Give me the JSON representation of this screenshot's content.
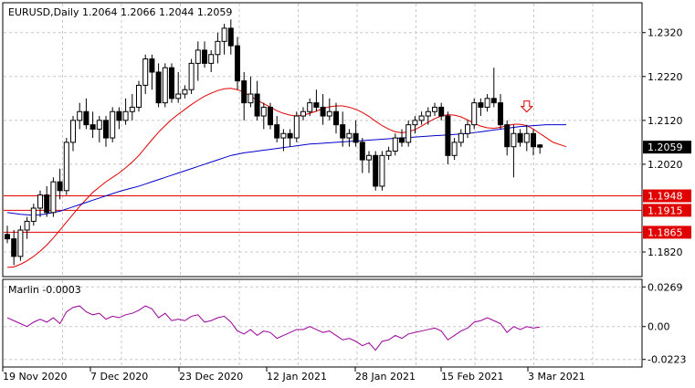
{
  "chart_data": [
    {
      "type": "candlestick",
      "title": "EURUSD,Daily  1.2064 1.2066 1.2044 1.2059",
      "ylim": [
        1.1766,
        1.2386
      ],
      "yticks": [
        "1.2320",
        "1.2220",
        "1.2120",
        "1.2020",
        "1.1820"
      ],
      "current_price": "1.2059",
      "levels": [
        {
          "label": "1.1948",
          "value": 1.1948
        },
        {
          "label": "1.1915",
          "value": 1.1915
        },
        {
          "label": "1.1865",
          "value": 1.1865
        }
      ],
      "xticks": [
        "19 Nov 2020",
        "7 Dec 2020",
        "23 Dec 2020",
        "12 Jan 2021",
        "28 Jan 2021",
        "15 Feb 2021",
        "3 Mar 2021"
      ],
      "signal_arrow": {
        "index": 79,
        "price": 1.2135,
        "direction": "down"
      },
      "candles": [
        [
          1.186,
          1.188,
          1.184,
          1.185
        ],
        [
          1.185,
          1.187,
          1.179,
          1.181
        ],
        [
          1.181,
          1.188,
          1.18,
          1.187
        ],
        [
          1.187,
          1.19,
          1.185,
          1.189
        ],
        [
          1.189,
          1.193,
          1.188,
          1.192
        ],
        [
          1.192,
          1.196,
          1.19,
          1.195
        ],
        [
          1.195,
          1.197,
          1.19,
          1.191
        ],
        [
          1.191,
          1.199,
          1.19,
          1.198
        ],
        [
          1.198,
          1.201,
          1.194,
          1.196
        ],
        [
          1.196,
          1.208,
          1.195,
          1.207
        ],
        [
          1.207,
          1.213,
          1.205,
          1.212
        ],
        [
          1.212,
          1.216,
          1.21,
          1.214
        ],
        [
          1.214,
          1.217,
          1.21,
          1.211
        ],
        [
          1.211,
          1.214,
          1.208,
          1.21
        ],
        [
          1.21,
          1.213,
          1.207,
          1.212
        ],
        [
          1.212,
          1.213,
          1.206,
          1.208
        ],
        [
          1.208,
          1.215,
          1.207,
          1.214
        ],
        [
          1.214,
          1.215,
          1.21,
          1.212
        ],
        [
          1.212,
          1.217,
          1.211,
          1.214
        ],
        [
          1.214,
          1.218,
          1.212,
          1.215
        ],
        [
          1.215,
          1.221,
          1.214,
          1.22
        ],
        [
          1.22,
          1.227,
          1.218,
          1.226
        ],
        [
          1.226,
          1.227,
          1.219,
          1.223
        ],
        [
          1.223,
          1.225,
          1.215,
          1.216
        ],
        [
          1.216,
          1.225,
          1.215,
          1.224
        ],
        [
          1.224,
          1.225,
          1.216,
          1.217
        ],
        [
          1.217,
          1.223,
          1.216,
          1.218
        ],
        [
          1.218,
          1.22,
          1.217,
          1.219
        ],
        [
          1.219,
          1.226,
          1.218,
          1.225
        ],
        [
          1.225,
          1.23,
          1.221,
          1.228
        ],
        [
          1.228,
          1.23,
          1.224,
          1.225
        ],
        [
          1.225,
          1.228,
          1.223,
          1.227
        ],
        [
          1.227,
          1.232,
          1.225,
          1.23
        ],
        [
          1.23,
          1.234,
          1.227,
          1.233
        ],
        [
          1.233,
          1.235,
          1.227,
          1.229
        ],
        [
          1.229,
          1.231,
          1.219,
          1.221
        ],
        [
          1.221,
          1.223,
          1.212,
          1.216
        ],
        [
          1.216,
          1.222,
          1.215,
          1.218
        ],
        [
          1.218,
          1.221,
          1.212,
          1.213
        ],
        [
          1.213,
          1.216,
          1.21,
          1.215
        ],
        [
          1.215,
          1.216,
          1.21,
          1.211
        ],
        [
          1.211,
          1.213,
          1.207,
          1.208
        ],
        [
          1.208,
          1.21,
          1.205,
          1.209
        ],
        [
          1.209,
          1.21,
          1.206,
          1.208
        ],
        [
          1.208,
          1.214,
          1.207,
          1.213
        ],
        [
          1.213,
          1.215,
          1.212,
          1.214
        ],
        [
          1.214,
          1.217,
          1.213,
          1.216
        ],
        [
          1.216,
          1.219,
          1.214,
          1.215
        ],
        [
          1.215,
          1.218,
          1.211,
          1.213
        ],
        [
          1.213,
          1.217,
          1.212,
          1.214
        ],
        [
          1.214,
          1.216,
          1.209,
          1.211
        ],
        [
          1.211,
          1.214,
          1.206,
          1.208
        ],
        [
          1.208,
          1.21,
          1.206,
          1.209
        ],
        [
          1.209,
          1.212,
          1.206,
          1.207
        ],
        [
          1.207,
          1.208,
          1.2,
          1.203
        ],
        [
          1.203,
          1.205,
          1.2,
          1.204
        ],
        [
          1.204,
          1.205,
          1.196,
          1.197
        ],
        [
          1.197,
          1.205,
          1.196,
          1.204
        ],
        [
          1.204,
          1.206,
          1.203,
          1.205
        ],
        [
          1.205,
          1.209,
          1.204,
          1.208
        ],
        [
          1.208,
          1.21,
          1.206,
          1.207
        ],
        [
          1.207,
          1.212,
          1.206,
          1.211
        ],
        [
          1.211,
          1.213,
          1.209,
          1.212
        ],
        [
          1.212,
          1.214,
          1.211,
          1.213
        ],
        [
          1.213,
          1.215,
          1.211,
          1.214
        ],
        [
          1.214,
          1.216,
          1.213,
          1.215
        ],
        [
          1.215,
          1.216,
          1.212,
          1.213
        ],
        [
          1.213,
          1.214,
          1.202,
          1.204
        ],
        [
          1.204,
          1.208,
          1.203,
          1.207
        ],
        [
          1.207,
          1.21,
          1.206,
          1.209
        ],
        [
          1.209,
          1.212,
          1.208,
          1.211
        ],
        [
          1.211,
          1.217,
          1.21,
          1.216
        ],
        [
          1.216,
          1.217,
          1.213,
          1.215
        ],
        [
          1.215,
          1.218,
          1.214,
          1.217
        ],
        [
          1.217,
          1.224,
          1.215,
          1.216
        ],
        [
          1.216,
          1.218,
          1.21,
          1.211
        ],
        [
          1.211,
          1.212,
          1.204,
          1.206
        ],
        [
          1.206,
          1.211,
          1.199,
          1.209
        ],
        [
          1.209,
          1.21,
          1.206,
          1.207
        ],
        [
          1.207,
          1.211,
          1.205,
          1.209
        ],
        [
          1.209,
          1.21,
          1.204,
          1.206
        ],
        [
          1.2064,
          1.2066,
          1.2044,
          1.2059
        ]
      ],
      "series": [
        {
          "type": "line",
          "color": "#e00000",
          "values": [
            1.1785,
            1.1786,
            1.1792,
            1.18,
            1.181,
            1.1822,
            1.1836,
            1.1852,
            1.187,
            1.1888,
            1.1906,
            1.1924,
            1.194,
            1.1956,
            1.1968,
            1.198,
            1.199,
            1.2,
            1.2012,
            1.2025,
            1.204,
            1.2058,
            1.2076,
            1.2093,
            1.2108,
            1.2122,
            1.2134,
            1.2145,
            1.2156,
            1.2166,
            1.2175,
            1.2182,
            1.2188,
            1.2192,
            1.2193,
            1.219,
            1.2184,
            1.2175,
            1.2166,
            1.2158,
            1.215,
            1.2142,
            1.2136,
            1.2132,
            1.213,
            1.2132,
            1.2136,
            1.2141,
            1.2147,
            1.2151,
            1.2153,
            1.2153,
            1.215,
            1.2145,
            1.2138,
            1.2129,
            1.2118,
            1.2108,
            1.21,
            1.2094,
            1.2092,
            1.2094,
            1.2099,
            1.2107,
            1.2116,
            1.2124,
            1.213,
            1.2133,
            1.2132,
            1.2128,
            1.2121,
            1.2113,
            1.2107,
            1.2103,
            1.2102,
            1.2104,
            1.2108,
            1.2111,
            1.2111,
            1.2108,
            1.21,
            1.209,
            1.208,
            1.207,
            1.2065,
            1.206
          ]
        },
        {
          "type": "line",
          "color": "#0000cc",
          "values": [
            1.191,
            1.1908,
            1.1906,
            1.1905,
            1.1904,
            1.1905,
            1.1907,
            1.191,
            1.1913,
            1.1918,
            1.1923,
            1.1928,
            1.1933,
            1.1938,
            1.1943,
            1.1948,
            1.1953,
            1.1958,
            1.1962,
            1.1966,
            1.197,
            1.1975,
            1.198,
            1.1985,
            1.199,
            1.1995,
            1.2,
            1.2005,
            1.201,
            1.2015,
            1.202,
            1.2025,
            1.203,
            1.2035,
            1.204,
            1.2043,
            1.2046,
            1.2048,
            1.205,
            1.2052,
            1.2054,
            1.2056,
            1.2058,
            1.206,
            1.2062,
            1.2064,
            1.2066,
            1.2067,
            1.2068,
            1.2069,
            1.207,
            1.2071,
            1.2072,
            1.2073,
            1.2074,
            1.2075,
            1.2076,
            1.2077,
            1.2078,
            1.2079,
            1.208,
            1.2081,
            1.2082,
            1.2083,
            1.2084,
            1.2085,
            1.2086,
            1.2087,
            1.2088,
            1.2089,
            1.209,
            1.2092,
            1.2094,
            1.2096,
            1.2098,
            1.21,
            1.2102,
            1.2104,
            1.2106,
            1.2107,
            1.2108,
            1.2109,
            1.211,
            1.211,
            1.211,
            1.211
          ]
        }
      ]
    },
    {
      "type": "line",
      "title": "Marlin -0.0003",
      "ylim": [
        -0.0268,
        0.0314
      ],
      "yticks": [
        "0.0269",
        "0.00",
        "-0.0223"
      ],
      "zero_line": true,
      "series": [
        {
          "color": "#990099",
          "values": [
            0.006,
            0.004,
            0.002,
            0.0,
            0.003,
            0.005,
            0.003,
            0.006,
            0.002,
            0.01,
            0.013,
            0.014,
            0.01,
            0.008,
            0.009,
            0.005,
            0.007,
            0.006,
            0.008,
            0.009,
            0.011,
            0.014,
            0.012,
            0.006,
            0.009,
            0.004,
            0.005,
            0.004,
            0.007,
            0.008,
            0.003,
            0.004,
            0.006,
            0.007,
            0.003,
            -0.003,
            -0.005,
            -0.002,
            -0.006,
            -0.003,
            -0.004,
            -0.008,
            -0.006,
            -0.004,
            -0.002,
            -0.002,
            0.0,
            -0.002,
            -0.004,
            -0.003,
            -0.006,
            -0.009,
            -0.008,
            -0.01,
            -0.013,
            -0.011,
            -0.016,
            -0.01,
            -0.009,
            -0.006,
            -0.008,
            -0.005,
            -0.004,
            -0.003,
            -0.002,
            -0.001,
            -0.003,
            -0.009,
            -0.006,
            -0.003,
            -0.001,
            0.003,
            0.004,
            0.006,
            0.004,
            0.002,
            -0.004,
            0.0,
            -0.002,
            0.0,
            -0.001,
            -0.0003
          ]
        }
      ]
    }
  ]
}
